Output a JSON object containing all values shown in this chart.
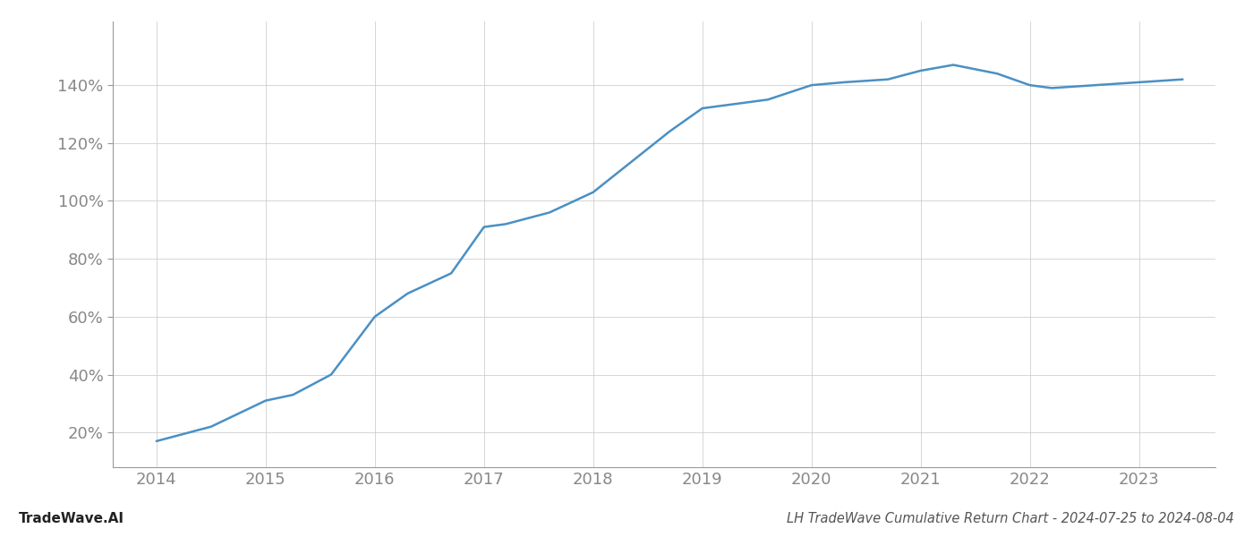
{
  "x_values": [
    2014.0,
    2014.5,
    2015.0,
    2015.25,
    2015.6,
    2016.0,
    2016.3,
    2016.7,
    2017.0,
    2017.2,
    2017.6,
    2018.0,
    2018.4,
    2018.7,
    2019.0,
    2019.2,
    2019.6,
    2020.0,
    2020.3,
    2020.7,
    2021.0,
    2021.3,
    2021.7,
    2022.0,
    2022.2,
    2022.6,
    2023.0,
    2023.4
  ],
  "y_values": [
    17,
    22,
    31,
    33,
    40,
    60,
    68,
    75,
    91,
    92,
    96,
    103,
    115,
    124,
    132,
    133,
    135,
    140,
    141,
    142,
    145,
    147,
    144,
    140,
    139,
    140,
    141,
    142
  ],
  "line_color": "#4a90c4",
  "line_width": 1.8,
  "title": "LH TradeWave Cumulative Return Chart - 2024-07-25 to 2024-08-04",
  "watermark": "TradeWave.AI",
  "x_ticks": [
    2014,
    2015,
    2016,
    2017,
    2018,
    2019,
    2020,
    2021,
    2022,
    2023
  ],
  "x_tick_labels": [
    "2014",
    "2015",
    "2016",
    "2017",
    "2018",
    "2019",
    "2020",
    "2021",
    "2022",
    "2023"
  ],
  "y_ticks": [
    20,
    40,
    60,
    80,
    100,
    120,
    140
  ],
  "y_tick_labels": [
    "20%",
    "40%",
    "60%",
    "80%",
    "100%",
    "120%",
    "140%"
  ],
  "ylim": [
    8,
    162
  ],
  "xlim": [
    2013.6,
    2023.7
  ],
  "background_color": "#ffffff",
  "grid_color": "#cccccc",
  "grid_alpha": 0.8,
  "title_fontsize": 10.5,
  "watermark_fontsize": 11,
  "tick_label_color": "#888888",
  "tick_fontsize": 13,
  "bottom_text_color": "#555555"
}
